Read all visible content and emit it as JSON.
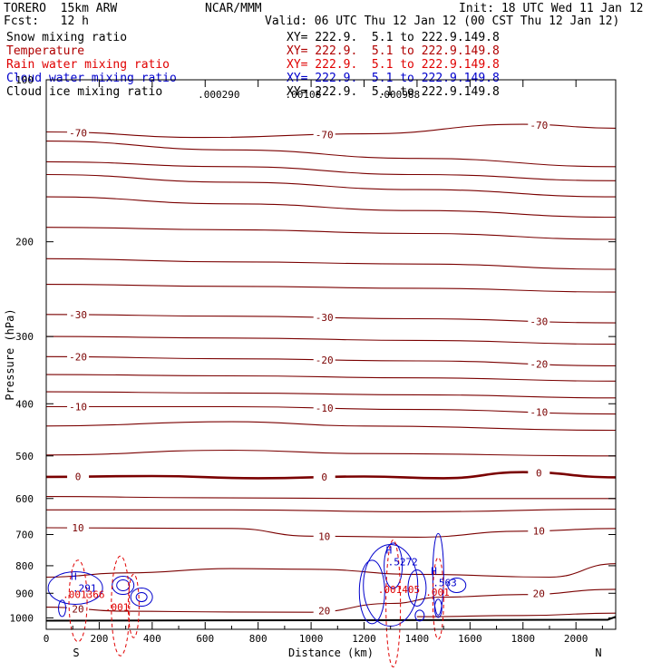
{
  "header": {
    "model": "TORERO  15km ARW",
    "org": "NCAR/MMM",
    "init": "Init: 18 UTC Wed 11 Jan 12",
    "fcst": "Fcst:   12 h",
    "valid": "Valid: 06 UTC Thu 12 Jan 12 (00 CST Thu 12 Jan 12)"
  },
  "legend": [
    {
      "label": "Snow mixing ratio",
      "xy": "XY= 222.9.  5.1 to 222.9.149.8",
      "color": "#000000"
    },
    {
      "label": "Temperature",
      "xy": "XY= 222.9.  5.1 to 222.9.149.8",
      "color": "#b00000"
    },
    {
      "label": "Rain water mixing ratio",
      "xy": "XY= 222.9.  5.1 to 222.9.149.8",
      "color": "#e00000"
    },
    {
      "label": "Cloud water mixing ratio",
      "xy": "XY= 222.9.  5.1 to 222.9.149.8",
      "color": "#0000cc"
    },
    {
      "label": "Cloud ice mixing ratio",
      "xy": "XY= 222.9.  5.1 to 222.9.149.8",
      "color": "#000000"
    }
  ],
  "chart_data": {
    "type": "contour",
    "xlabel": "Distance (km)",
    "ylabel": "Pressure (hPa)",
    "xlim": [
      0,
      2150
    ],
    "ylim": [
      1050,
      100
    ],
    "yscale": "log",
    "x_ticks": [
      0,
      200,
      400,
      600,
      800,
      1000,
      1200,
      1400,
      1600,
      1800,
      2000
    ],
    "y_ticks": [
      200,
      300,
      400,
      500,
      600,
      700,
      800,
      900,
      1000
    ],
    "top_pressure_label": "100",
    "endpoints": {
      "left": "S",
      "right": "N"
    },
    "temperature_contours": [
      {
        "level": -70,
        "label": "-70",
        "points": [
          [
            0,
            125
          ],
          [
            600,
            128
          ],
          [
            1200,
            126
          ],
          [
            1800,
            121
          ],
          [
            2150,
            123
          ]
        ]
      },
      {
        "level": -60,
        "label": "",
        "points": [
          [
            0,
            130
          ],
          [
            700,
            135
          ],
          [
            1400,
            140
          ],
          [
            2150,
            145
          ]
        ]
      },
      {
        "level": -60,
        "label": "",
        "points": [
          [
            0,
            142
          ],
          [
            700,
            145
          ],
          [
            1400,
            150
          ],
          [
            2150,
            154
          ]
        ]
      },
      {
        "level": -50,
        "label": "",
        "points": [
          [
            0,
            150
          ],
          [
            700,
            155
          ],
          [
            1400,
            160
          ],
          [
            2150,
            165
          ]
        ]
      },
      {
        "level": -50,
        "label": "",
        "points": [
          [
            0,
            165
          ],
          [
            700,
            170
          ],
          [
            1400,
            175
          ],
          [
            2150,
            180
          ]
        ]
      },
      {
        "level": -40,
        "label": "",
        "points": [
          [
            0,
            188
          ],
          [
            700,
            190
          ],
          [
            1400,
            193
          ],
          [
            2150,
            198
          ]
        ]
      },
      {
        "level": -40,
        "label": "",
        "points": [
          [
            0,
            215
          ],
          [
            700,
            218
          ],
          [
            1400,
            220
          ],
          [
            2150,
            225
          ]
        ]
      },
      {
        "level": -40,
        "label": "",
        "points": [
          [
            0,
            240
          ],
          [
            700,
            242
          ],
          [
            1400,
            244
          ],
          [
            2150,
            248
          ]
        ]
      },
      {
        "level": -30,
        "label": "-30",
        "points": [
          [
            0,
            273
          ],
          [
            700,
            275
          ],
          [
            1400,
            278
          ],
          [
            2150,
            283
          ]
        ]
      },
      {
        "level": -30,
        "label": "",
        "points": [
          [
            0,
            300
          ],
          [
            700,
            302
          ],
          [
            1400,
            305
          ],
          [
            2150,
            310
          ]
        ]
      },
      {
        "level": -20,
        "label": "-20",
        "points": [
          [
            0,
            327
          ],
          [
            700,
            330
          ],
          [
            1400,
            333
          ],
          [
            2150,
            340
          ]
        ]
      },
      {
        "level": -20,
        "label": "",
        "points": [
          [
            0,
            353
          ],
          [
            700,
            355
          ],
          [
            1400,
            358
          ],
          [
            2150,
            363
          ]
        ]
      },
      {
        "level": -10,
        "label": "",
        "points": [
          [
            0,
            380
          ],
          [
            700,
            382
          ],
          [
            1400,
            385
          ],
          [
            2150,
            390
          ]
        ]
      },
      {
        "level": -10,
        "label": "-10",
        "points": [
          [
            0,
            405
          ],
          [
            700,
            405
          ],
          [
            1400,
            410
          ],
          [
            2150,
            418
          ]
        ]
      },
      {
        "level": -10,
        "label": "",
        "points": [
          [
            0,
            440
          ],
          [
            700,
            432
          ],
          [
            1200,
            440
          ],
          [
            2150,
            448
          ]
        ]
      },
      {
        "level": 0,
        "label": "",
        "points": [
          [
            0,
            498
          ],
          [
            700,
            488
          ],
          [
            1200,
            495
          ],
          [
            2150,
            500
          ]
        ]
      },
      {
        "level": 0,
        "label": "0",
        "points": [
          [
            0,
            547
          ],
          [
            400,
            545
          ],
          [
            800,
            550
          ],
          [
            1200,
            546
          ],
          [
            1500,
            550
          ],
          [
            1800,
            536
          ],
          [
            2150,
            548
          ]
        ]
      },
      {
        "level": 10,
        "label": "",
        "points": [
          [
            0,
            595
          ],
          [
            600,
            598
          ],
          [
            1200,
            600
          ],
          [
            2150,
            600
          ]
        ]
      },
      {
        "level": 10,
        "label": "",
        "points": [
          [
            0,
            630
          ],
          [
            700,
            630
          ],
          [
            1400,
            635
          ],
          [
            2150,
            628
          ]
        ]
      },
      {
        "level": 10,
        "label": "10",
        "points": [
          [
            0,
            680
          ],
          [
            700,
            682
          ],
          [
            1000,
            705
          ],
          [
            1400,
            708
          ],
          [
            1800,
            690
          ],
          [
            2150,
            682
          ]
        ]
      },
      {
        "level": 20,
        "label": "",
        "points": [
          [
            0,
            840
          ],
          [
            300,
            825
          ],
          [
            700,
            810
          ],
          [
            1000,
            812
          ],
          [
            1400,
            830
          ],
          [
            1900,
            840
          ],
          [
            2150,
            793
          ]
        ]
      },
      {
        "level": 20,
        "label": "20",
        "points": [
          [
            0,
            955
          ],
          [
            300,
            972
          ],
          [
            700,
            975
          ],
          [
            1000,
            976
          ],
          [
            1300,
            940
          ],
          [
            1500,
            915
          ],
          [
            1800,
            905
          ],
          [
            2150,
            885
          ]
        ]
      },
      {
        "level": 20,
        "label": "",
        "points": [
          [
            1400,
            995
          ],
          [
            1800,
            990
          ],
          [
            2150,
            980
          ]
        ]
      }
    ],
    "cloud_water_maxima": [
      {
        "label": "H",
        "value": ".291",
        "x": 120,
        "p": 890
      },
      {
        "label": "H",
        "value": ".5272",
        "x": 1310,
        "p": 795
      },
      {
        "label": "H",
        "value": ".563",
        "x": 1480,
        "p": 870
      }
    ],
    "rain_water_labels": [
      {
        "value": ".001366",
        "x": 110,
        "p": 905
      },
      {
        "value": ".001",
        "x": 270,
        "p": 955
      },
      {
        "value": ".001405",
        "x": 1300,
        "p": 885
      },
      {
        "value": ".001",
        "x": 1480,
        "p": 895
      }
    ],
    "ice_labels": [
      {
        "value": ".000290",
        "x": 620,
        "p": 100
      },
      {
        "value": ".00108",
        "x": 950,
        "p": 100
      },
      {
        "value": ".000988",
        "x": 1300,
        "p": 100
      }
    ]
  }
}
